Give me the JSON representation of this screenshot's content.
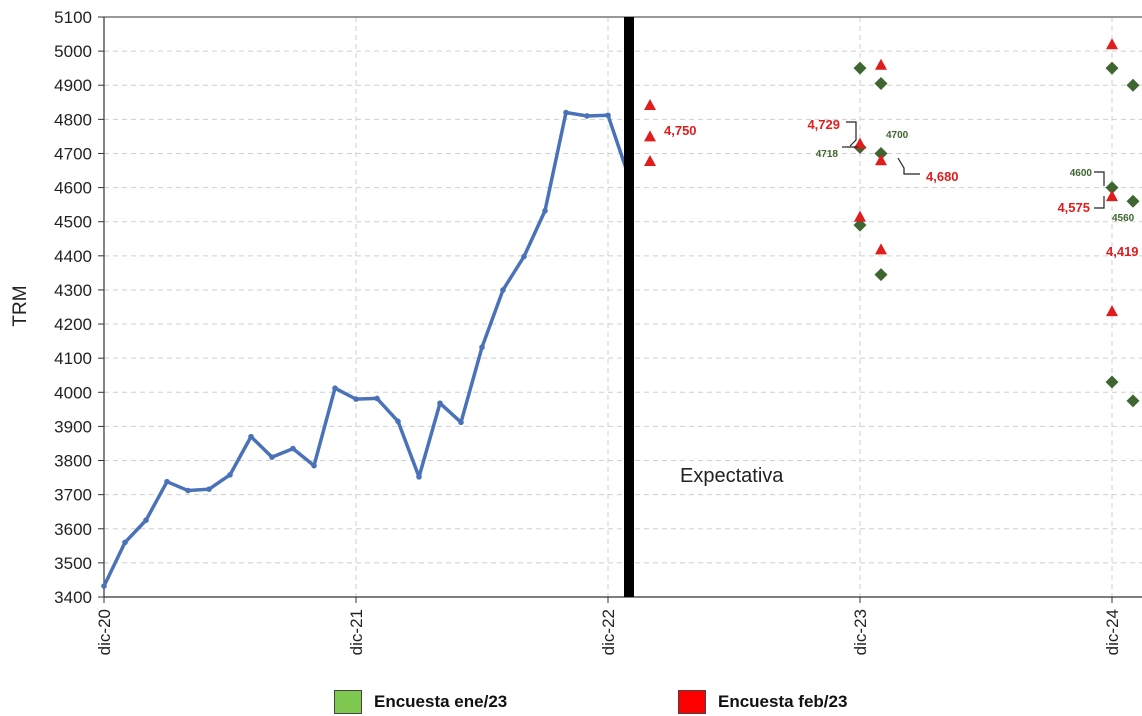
{
  "chart_data": {
    "type": "line",
    "ylabel": "TRM",
    "ylim": [
      3400,
      5100
    ],
    "yticks": [
      3400,
      3500,
      3600,
      3700,
      3800,
      3900,
      4000,
      4100,
      4200,
      4300,
      4400,
      4500,
      4600,
      4700,
      4800,
      4900,
      5000,
      5100
    ],
    "xlim": [
      0,
      49
    ],
    "xticks": [
      {
        "label": "dic-20",
        "x": 0
      },
      {
        "label": "dic-21",
        "x": 12
      },
      {
        "label": "dic-22",
        "x": 24
      },
      {
        "label": "dic-23",
        "x": 36
      },
      {
        "label": "dic-24",
        "x": 48
      }
    ],
    "grid": true,
    "divider_x": 25,
    "divider_label": "Expectativa",
    "series": [
      {
        "color": "#4a72b8",
        "x": [
          0,
          1,
          2,
          3,
          4,
          5,
          6,
          7,
          8,
          9,
          10,
          11,
          12,
          13,
          14,
          15,
          16,
          17,
          18,
          19,
          20,
          21,
          22,
          23,
          24,
          25
        ],
        "values": [
          3432,
          3560,
          3625,
          3738,
          3712,
          3716,
          3758,
          3870,
          3810,
          3835,
          3785,
          4012,
          3980,
          3982,
          3915,
          3752,
          3968,
          3912,
          4132,
          4300,
          4398,
          4532,
          4820,
          4810,
          4812,
          4630
        ]
      },
      {
        "name": "Encuesta ene/23",
        "marker": "diamond",
        "color": "#3f6630",
        "x": [
          36,
          36,
          36,
          37,
          37,
          37,
          48,
          48,
          48,
          49,
          49,
          49
        ],
        "values": [
          4950,
          4718,
          4490,
          4905,
          4700,
          4345,
          4950,
          4600,
          4030,
          4900,
          4560,
          3975
        ]
      },
      {
        "name": "Encuesta feb/23",
        "marker": "triangle",
        "color": "#e01c1c",
        "x": [
          26,
          26,
          26,
          36,
          36,
          37,
          37,
          37,
          48,
          48,
          48
        ],
        "values": [
          4842,
          4750,
          4678,
          4729,
          4515,
          4960,
          4680,
          4419,
          5020,
          4575,
          4238
        ]
      }
    ],
    "annotations": [
      {
        "text": "4,750",
        "color": "#e01c1c",
        "size": 13
      },
      {
        "text": "4,729",
        "color": "#e01c1c",
        "size": 13
      },
      {
        "text": "4718",
        "color": "#3f6630",
        "size": 10
      },
      {
        "text": "4700",
        "color": "#3f6630",
        "size": 10
      },
      {
        "text": "4,680",
        "color": "#e01c1c",
        "size": 13
      },
      {
        "text": "4600",
        "color": "#3f6630",
        "size": 10
      },
      {
        "text": "4,575",
        "color": "#e01c1c",
        "size": 13
      },
      {
        "text": "4560",
        "color": "#3f6630",
        "size": 10
      },
      {
        "text": "4,419",
        "color": "#e01c1c",
        "size": 13
      }
    ],
    "legend": {
      "position": "bottom",
      "items": [
        {
          "label": "Encuesta ene/23",
          "color": "#7ec850"
        },
        {
          "label": "Encuesta feb/23",
          "color": "#ff0000"
        }
      ]
    }
  }
}
